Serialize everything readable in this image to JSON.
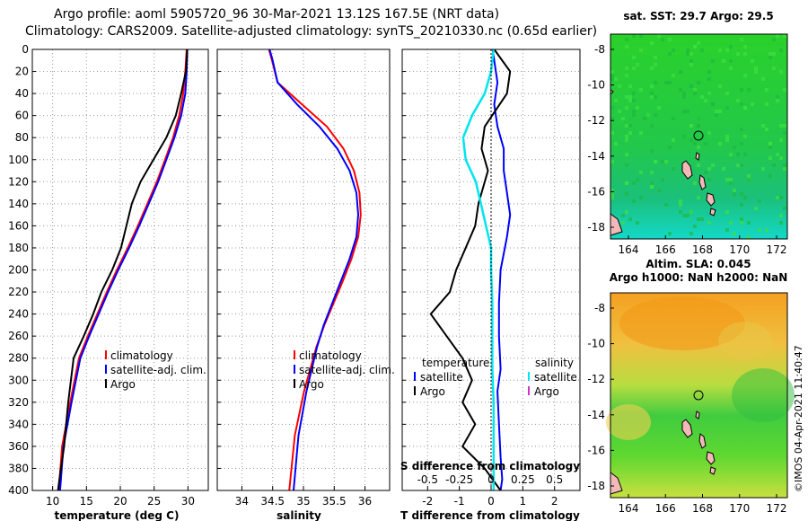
{
  "header": {
    "line1": "Argo profile: aoml 5905720_96 30-Mar-2021 13.12S 167.5E (NRT data)",
    "line2": "Climatology: CARS2009. Satellite-adjusted climatology: synTS_20210330.nc (0.65d earlier)"
  },
  "side_stamp": "©IMOS 04-Apr-2021 11:40:47",
  "colors": {
    "climatology": "#ff0000",
    "satellite": "#0000ff",
    "argo": "#000000",
    "sal_satellite": "#00e5ee",
    "sal_argo": "#cc33cc"
  },
  "chart_data": [
    {
      "type": "line",
      "name": "temperature",
      "xlabel": "temperature (deg C)",
      "xlim": [
        7,
        33
      ],
      "xticks": [
        10,
        15,
        20,
        25,
        30
      ],
      "ylim": [
        0,
        400
      ],
      "yticks": [
        0,
        20,
        40,
        60,
        80,
        100,
        120,
        140,
        160,
        180,
        200,
        220,
        240,
        260,
        280,
        300,
        320,
        340,
        360,
        380,
        400
      ],
      "grid": true,
      "legend": [
        "climatology",
        "satellite-adj. clim.",
        "Argo"
      ],
      "series": [
        {
          "name": "climatology",
          "color": "#ff0000",
          "x": [
            29.8,
            29.6,
            29.3,
            28.7,
            27.8,
            26.6,
            25.4,
            24.0,
            22.6,
            21.1,
            19.5,
            18.0,
            16.6,
            15.2,
            13.9,
            12.6,
            11.4,
            10.9
          ],
          "y": [
            0,
            20,
            40,
            60,
            80,
            100,
            120,
            140,
            160,
            180,
            200,
            220,
            240,
            260,
            280,
            320,
            360,
            400
          ]
        },
        {
          "name": "satellite-adj. clim.",
          "color": "#0000ff",
          "x": [
            29.9,
            29.8,
            29.6,
            29.0,
            28.0,
            26.8,
            25.6,
            24.2,
            22.8,
            21.3,
            19.7,
            18.2,
            16.8,
            15.4,
            14.1,
            12.8,
            11.6,
            11.1
          ],
          "y": [
            0,
            20,
            40,
            60,
            80,
            100,
            120,
            140,
            160,
            180,
            200,
            220,
            240,
            260,
            280,
            320,
            360,
            400
          ]
        },
        {
          "name": "Argo",
          "color": "#000000",
          "x": [
            29.9,
            29.7,
            29.0,
            28.2,
            26.8,
            24.9,
            23.0,
            21.7,
            20.9,
            20.1,
            18.8,
            17.2,
            16.0,
            14.6,
            13.1,
            12.3,
            11.7,
            11.0,
            10.8
          ],
          "y": [
            0,
            20,
            40,
            60,
            80,
            100,
            120,
            140,
            160,
            180,
            200,
            220,
            240,
            260,
            280,
            320,
            360,
            390,
            400
          ]
        }
      ]
    },
    {
      "type": "line",
      "name": "salinity",
      "xlabel": "salinity",
      "xlim": [
        33.6,
        36.4
      ],
      "xticks": [
        34,
        34.5,
        35,
        35.5,
        36
      ],
      "ylim": [
        0,
        400
      ],
      "grid": true,
      "legend": [
        "climatology",
        "satellite-adj. clim.",
        "Argo"
      ],
      "series": [
        {
          "name": "climatology",
          "color": "#ff0000",
          "x": [
            34.44,
            34.49,
            34.58,
            34.98,
            35.38,
            35.65,
            35.82,
            35.91,
            35.93,
            35.89,
            35.78,
            35.64,
            35.49,
            35.34,
            35.21,
            35.01,
            34.86,
            34.77
          ],
          "y": [
            0,
            10,
            30,
            50,
            70,
            90,
            110,
            130,
            150,
            170,
            190,
            210,
            230,
            250,
            270,
            310,
            350,
            400
          ]
        },
        {
          "name": "satellite-adj. clim.",
          "color": "#0000ff",
          "x": [
            34.45,
            34.5,
            34.58,
            34.9,
            35.26,
            35.55,
            35.75,
            35.86,
            35.89,
            35.86,
            35.75,
            35.61,
            35.47,
            35.33,
            35.22,
            35.05,
            34.92,
            34.84
          ],
          "y": [
            0,
            10,
            30,
            50,
            70,
            90,
            110,
            130,
            150,
            170,
            190,
            210,
            230,
            250,
            270,
            310,
            350,
            400
          ]
        }
      ]
    },
    {
      "type": "line",
      "name": "difference",
      "xlabel": "T difference from climatology",
      "xlim": [
        -2.8,
        2.8
      ],
      "xticks": [
        -2,
        -1,
        0,
        1,
        2
      ],
      "ylim": [
        0,
        400
      ],
      "grid": true,
      "top_label": "S difference from climatology",
      "top_xticks": [
        "-0.5",
        "-0.25",
        "0",
        "0.25",
        "0.5"
      ],
      "top_xtick_values": [
        -0.5,
        -0.25,
        0,
        0.25,
        0.5
      ],
      "top_xlim": [
        -0.7,
        0.7
      ],
      "legend_left_title": "temperature",
      "legend_right_title": "salinity",
      "legend_left": [
        "satellite",
        "Argo"
      ],
      "legend_right": [
        "satellite",
        "Argo"
      ],
      "series": [
        {
          "name": "T satellite",
          "color": "#0000ff",
          "x": [
            0.05,
            0.1,
            0.2,
            0.1,
            0.2,
            0.4,
            0.4,
            0.5,
            0.6,
            0.5,
            0.3,
            0.25,
            0.25,
            0.3,
            0.2,
            0.25,
            0.3,
            0.35,
            0.3
          ],
          "y": [
            0,
            10,
            30,
            50,
            70,
            90,
            110,
            130,
            150,
            170,
            200,
            230,
            260,
            290,
            310,
            340,
            370,
            390,
            400
          ]
        },
        {
          "name": "T Argo",
          "color": "#000000",
          "x": [
            0.1,
            0.6,
            0.5,
            -0.2,
            -0.3,
            -0.1,
            -0.4,
            -0.5,
            -0.8,
            -1.1,
            -1.3,
            -1.9,
            -1.4,
            -0.9,
            -0.6,
            -0.9,
            -0.5,
            -0.9,
            -0.2,
            0.3
          ],
          "y": [
            0,
            20,
            40,
            70,
            90,
            110,
            140,
            160,
            180,
            200,
            220,
            240,
            260,
            280,
            300,
            320,
            340,
            360,
            380,
            400
          ]
        },
        {
          "name": "S satellite",
          "color": "#00e5ee",
          "x": [
            0.02,
            0.0,
            -0.05,
            -0.15,
            -0.22,
            -0.2,
            -0.12,
            -0.08,
            -0.04,
            0.0,
            0.0,
            0.01,
            0.01,
            0.01,
            0.02,
            0.02,
            0.02
          ],
          "y": [
            0,
            20,
            40,
            60,
            80,
            100,
            120,
            140,
            160,
            180,
            200,
            230,
            260,
            290,
            320,
            360,
            400
          ]
        }
      ]
    }
  ],
  "maps": [
    {
      "name": "sst-map",
      "title": "sat. SST: 29.7  Argo: 29.5",
      "xticks": [
        "164",
        "166",
        "168",
        "170",
        "172"
      ],
      "yticks": [
        "-8",
        "-10",
        "-12",
        "-14",
        "-16",
        "-18"
      ]
    },
    {
      "name": "sla-map",
      "title_top": "Altim. SLA: 0.045",
      "title": "Argo h1000: NaN h2000: NaN",
      "xticks": [
        "164",
        "166",
        "168",
        "170",
        "172"
      ],
      "yticks": [
        "-8",
        "-10",
        "-12",
        "-14",
        "-16",
        "-18"
      ]
    }
  ]
}
